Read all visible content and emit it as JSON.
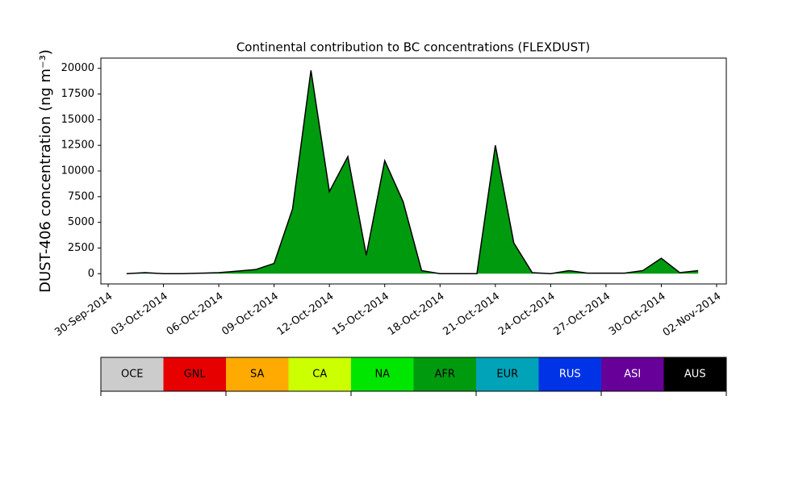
{
  "chart_data": {
    "type": "area",
    "title": "Continental contribution to BC concentrations (FLEXDUST)",
    "y_label": "DUST-406 concentration (ng m⁻³)",
    "x": [
      "2014-10-01",
      "2014-10-02",
      "2014-10-03",
      "2014-10-04",
      "2014-10-05",
      "2014-10-06",
      "2014-10-07",
      "2014-10-08",
      "2014-10-09",
      "2014-10-10",
      "2014-10-11",
      "2014-10-12",
      "2014-10-13",
      "2014-10-14",
      "2014-10-15",
      "2014-10-16",
      "2014-10-17",
      "2014-10-18",
      "2014-10-19",
      "2014-10-20",
      "2014-10-21",
      "2014-10-22",
      "2014-10-23",
      "2014-10-24",
      "2014-10-25",
      "2014-10-26",
      "2014-10-27",
      "2014-10-28",
      "2014-10-29",
      "2014-10-30",
      "2014-10-31",
      "2014-11-01"
    ],
    "series": [
      {
        "name": "AFR",
        "color": "#009a0f",
        "line_color": "#000000",
        "values": [
          0,
          100,
          0,
          0,
          50,
          100,
          250,
          400,
          1000,
          6300,
          19800,
          8000,
          11400,
          1800,
          11000,
          7000,
          300,
          0,
          0,
          0,
          12500,
          3000,
          100,
          0,
          300,
          50,
          50,
          50,
          300,
          1500,
          100,
          300
        ]
      }
    ],
    "xlim": [
      "2014-09-30",
      "2014-11-02"
    ],
    "xticks": [
      {
        "value": "2014-09-30",
        "label": "30-Sep-2014"
      },
      {
        "value": "2014-10-03",
        "label": "03-Oct-2014"
      },
      {
        "value": "2014-10-06",
        "label": "06-Oct-2014"
      },
      {
        "value": "2014-10-09",
        "label": "09-Oct-2014"
      },
      {
        "value": "2014-10-12",
        "label": "12-Oct-2014"
      },
      {
        "value": "2014-10-15",
        "label": "15-Oct-2014"
      },
      {
        "value": "2014-10-18",
        "label": "18-Oct-2014"
      },
      {
        "value": "2014-10-21",
        "label": "21-Oct-2014"
      },
      {
        "value": "2014-10-24",
        "label": "24-Oct-2014"
      },
      {
        "value": "2014-10-27",
        "label": "27-Oct-2014"
      },
      {
        "value": "2014-10-30",
        "label": "30-Oct-2014"
      },
      {
        "value": "2014-11-02",
        "label": "02-Nov-2014"
      }
    ],
    "ylim": [
      -1000,
      21000
    ],
    "yticks": [
      0,
      2500,
      5000,
      7500,
      10000,
      12500,
      15000,
      17500,
      20000
    ],
    "colorbar": {
      "labels": [
        "OCE",
        "GNL",
        "SA",
        "CA",
        "NA",
        "AFR",
        "EUR",
        "RUS",
        "ASI",
        "AUS"
      ],
      "colors": [
        "#cccccc",
        "#e60000",
        "#ffaa00",
        "#ccff00",
        "#00e600",
        "#009a0f",
        "#00a3b8",
        "#0033e6",
        "#660099",
        "#000000"
      ]
    }
  }
}
